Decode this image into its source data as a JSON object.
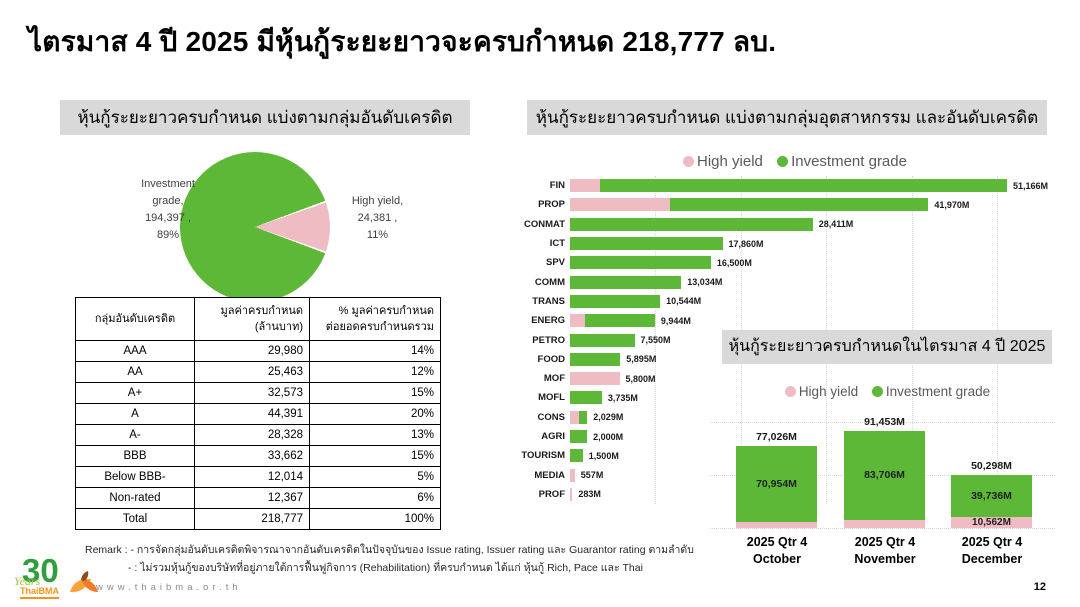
{
  "slide": {
    "title": "ไตรมาส 4 ปี 2025 มีหุ้นกู้ระยะยาวจะครบกำหนด 218,777 ลบ.",
    "page_number": "12",
    "website": "www.thaibma.or.th",
    "logo": {
      "number": "30",
      "years": "Years",
      "org": "ThaiBMA"
    },
    "remark_line1": "Remark : - การจัดกลุ่มอันดับเครดิตพิจารณาจากอันดับเครดิตในปัจจุบันของ Issue rating, Issuer rating และ Guarantor rating ตามลำดับ",
    "remark_line2": "- : ไม่รวมหุ้นกู้ของบริษัทที่อยู่ภายใต้การฟื้นฟูกิจการ (Rehabilitation) ที่ครบกำหนด ได้แก่ หุ้นกู้ Rich, Pace และ Thai"
  },
  "colors": {
    "investment_grade": "#5cb836",
    "high_yield": "#f0bcc4",
    "header_bg": "#d9d9d9"
  },
  "chart_data": [
    {
      "id": "rating_pie",
      "type": "pie",
      "title": "หุ้นกู้ระยะยาวครบกำหนด แบ่งตามกลุ่มอันดับเครดิต",
      "slices": [
        {
          "label": "Investment grade",
          "value": 194397,
          "pct": 89,
          "color": "#5cb836"
        },
        {
          "label": "High yield",
          "value": 24381,
          "pct": 11,
          "color": "#f0bcc4"
        }
      ],
      "label_investment": "Investment\ngrade,\n194,397 ,\n89%",
      "label_high_yield": "High yield,\n24,381 ,\n11%"
    },
    {
      "id": "rating_table",
      "type": "table",
      "headers": [
        "กลุ่มอันดับเครดิต",
        "มูลค่าครบกำหนด\n(ล้านบาท)",
        "% มูลค่าครบกำหนด\nต่อยอดครบกำหนดรวม"
      ],
      "rows": [
        [
          "AAA",
          "29,980",
          "14%"
        ],
        [
          "AA",
          "25,463",
          "12%"
        ],
        [
          "A+",
          "32,573",
          "15%"
        ],
        [
          "A",
          "44,391",
          "20%"
        ],
        [
          "A-",
          "28,328",
          "13%"
        ],
        [
          "BBB",
          "33,662",
          "15%"
        ],
        [
          "Below BBB-",
          "12,014",
          "5%"
        ],
        [
          "Non-rated",
          "12,367",
          "6%"
        ],
        [
          "Total",
          "218,777",
          "100%"
        ]
      ]
    },
    {
      "id": "industry_bars",
      "type": "bar",
      "orientation": "horizontal",
      "stacked": true,
      "title": "หุ้นกู้ระยะยาวครบกำหนด แบ่งตามกลุ่มอุตสาหกรรม และอันดับเครดิต",
      "legend": [
        "High yield",
        "Investment grade"
      ],
      "xlim": [
        0,
        51166
      ],
      "grid_step": 10000,
      "note": "high_yield values without data labels are estimated from bar proportions",
      "rows": [
        {
          "label": "FIN",
          "total": 51166,
          "total_label": "51,166M",
          "high_yield": 3500
        },
        {
          "label": "PROP",
          "total": 41970,
          "total_label": "41,970M",
          "high_yield": 11700
        },
        {
          "label": "CONMAT",
          "total": 28411,
          "total_label": "28,411M",
          "high_yield": 0
        },
        {
          "label": "ICT",
          "total": 17860,
          "total_label": "17,860M",
          "high_yield": 0
        },
        {
          "label": "SPV",
          "total": 16500,
          "total_label": "16,500M",
          "high_yield": 0
        },
        {
          "label": "COMM",
          "total": 13034,
          "total_label": "13,034M",
          "high_yield": 0
        },
        {
          "label": "TRANS",
          "total": 10544,
          "total_label": "10,544M",
          "high_yield": 0
        },
        {
          "label": "ENERG",
          "total": 9944,
          "total_label": "9,944M",
          "high_yield": 1700
        },
        {
          "label": "PETRO",
          "total": 7550,
          "total_label": "7,550M",
          "high_yield": 0
        },
        {
          "label": "FOOD",
          "total": 5895,
          "total_label": "5,895M",
          "high_yield": 0
        },
        {
          "label": "MOF",
          "total": 5800,
          "total_label": "5,800M",
          "high_yield": 5800
        },
        {
          "label": "MOFL",
          "total": 3735,
          "total_label": "3,735M",
          "high_yield": 0
        },
        {
          "label": "CONS",
          "total": 2029,
          "total_label": "2,029M",
          "high_yield": 1000
        },
        {
          "label": "AGRI",
          "total": 2000,
          "total_label": "2,000M",
          "high_yield": 0
        },
        {
          "label": "TOURISM",
          "total": 1500,
          "total_label": "1,500M",
          "high_yield": 0
        },
        {
          "label": "MEDIA",
          "total": 557,
          "total_label": "557M",
          "high_yield": 557
        },
        {
          "label": "PROF",
          "total": 283,
          "total_label": "283M",
          "high_yield": 283
        }
      ]
    },
    {
      "id": "monthly_stack",
      "type": "bar",
      "orientation": "vertical",
      "stacked": true,
      "title": "หุ้นกู้ระยะยาวครบกำหนดในไตรมาส 4 ปี 2025",
      "legend": [
        "High yield",
        "Investment grade"
      ],
      "ylim": [
        0,
        110000
      ],
      "grid_step": 50000,
      "columns": [
        {
          "x1": "2025 Qtr 4",
          "x2": "October",
          "total": 77026,
          "total_label": "77,026M",
          "investment_grade": 70954,
          "ig_label": "70,954M",
          "high_yield": 6072,
          "hy_label": ""
        },
        {
          "x1": "2025 Qtr 4",
          "x2": "November",
          "total": 91453,
          "total_label": "91,453M",
          "investment_grade": 83706,
          "ig_label": "83,706M",
          "high_yield": 7747,
          "hy_label": ""
        },
        {
          "x1": "2025 Qtr 4",
          "x2": "December",
          "total": 50298,
          "total_label": "50,298M",
          "investment_grade": 39736,
          "ig_label": "39,736M",
          "high_yield": 10562,
          "hy_label": "10,562M"
        }
      ]
    }
  ]
}
